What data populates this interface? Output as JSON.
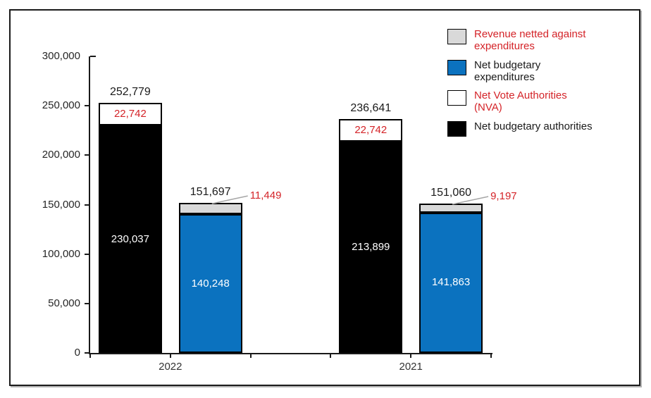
{
  "legend": {
    "items": [
      {
        "label": "Revenue netted against expenditures",
        "swatch_color": "#d9d9d9",
        "text_color": "#d42328"
      },
      {
        "label": "Net budgetary expenditures",
        "swatch_color": "#0b72bf",
        "text_color": "#1a1a1a"
      },
      {
        "label": "Net Vote Authorities (NVA)",
        "swatch_color": "#ffffff",
        "text_color": "#d42328"
      },
      {
        "label": "Net budgetary authorities",
        "swatch_color": "#000000",
        "text_color": "#1a1a1a"
      }
    ]
  },
  "chart_data": {
    "type": "bar",
    "stacked": true,
    "title": "",
    "xlabel": "",
    "ylabel": "",
    "grid": false,
    "legend_position": "top-right",
    "categories": [
      "2022",
      "2021"
    ],
    "ylim": [
      0,
      300000
    ],
    "yticks": [
      {
        "value": 300000,
        "label": "300,000"
      },
      {
        "value": 250000,
        "label": "250,000"
      },
      {
        "value": 200000,
        "label": "200,000"
      },
      {
        "value": 150000,
        "label": "150,000"
      },
      {
        "value": 100000,
        "label": "100,000"
      },
      {
        "value": 50000,
        "label": "50,000"
      },
      {
        "value": 0,
        "label": "0"
      }
    ],
    "series": [
      {
        "name": "Net budgetary authorities",
        "color": "#000000",
        "values": [
          230037,
          213899
        ]
      },
      {
        "name": "Net Vote Authorities (NVA)",
        "color": "#ffffff",
        "values": [
          22742,
          22742
        ]
      },
      {
        "name": "Net budgetary expenditures",
        "color": "#0b72bf",
        "values": [
          140248,
          141863
        ]
      },
      {
        "name": "Revenue netted against expenditures",
        "color": "#d9d9d9",
        "values": [
          11449,
          9197
        ]
      }
    ],
    "groups": [
      {
        "category": "2022",
        "bars": [
          {
            "total": 252779,
            "total_label": "252,779",
            "segments": [
              {
                "series": "Net budgetary authorities",
                "value": 230037,
                "label": "230,037",
                "color": "#000000",
                "label_color": "#ffffff",
                "label_placement": "inside"
              },
              {
                "series": "Net Vote Authorities (NVA)",
                "value": 22742,
                "label": "22,742",
                "color": "#ffffff",
                "label_color": "#d42328",
                "label_placement": "inside"
              }
            ]
          },
          {
            "total": 151697,
            "total_label": "151,697",
            "segments": [
              {
                "series": "Net budgetary expenditures",
                "value": 140248,
                "label": "140,248",
                "color": "#0b72bf",
                "label_color": "#ffffff",
                "label_placement": "inside"
              },
              {
                "series": "Revenue netted against expenditures",
                "value": 11449,
                "label": "11,449",
                "color": "#d9d9d9",
                "label_color": "#d42328",
                "label_placement": "callout-right"
              }
            ]
          }
        ]
      },
      {
        "category": "2021",
        "bars": [
          {
            "total": 236641,
            "total_label": "236,641",
            "segments": [
              {
                "series": "Net budgetary authorities",
                "value": 213899,
                "label": "213,899",
                "color": "#000000",
                "label_color": "#ffffff",
                "label_placement": "inside"
              },
              {
                "series": "Net Vote Authorities (NVA)",
                "value": 22742,
                "label": "22,742",
                "color": "#ffffff",
                "label_color": "#d42328",
                "label_placement": "inside"
              }
            ]
          },
          {
            "total": 151060,
            "total_label": "151,060",
            "segments": [
              {
                "series": "Net budgetary expenditures",
                "value": 141863,
                "label": "141,863",
                "color": "#0b72bf",
                "label_color": "#ffffff",
                "label_placement": "inside"
              },
              {
                "series": "Revenue netted against expenditures",
                "value": 9197,
                "label": "9,197",
                "color": "#d9d9d9",
                "label_color": "#d42328",
                "label_placement": "callout-right"
              }
            ]
          }
        ]
      }
    ]
  }
}
